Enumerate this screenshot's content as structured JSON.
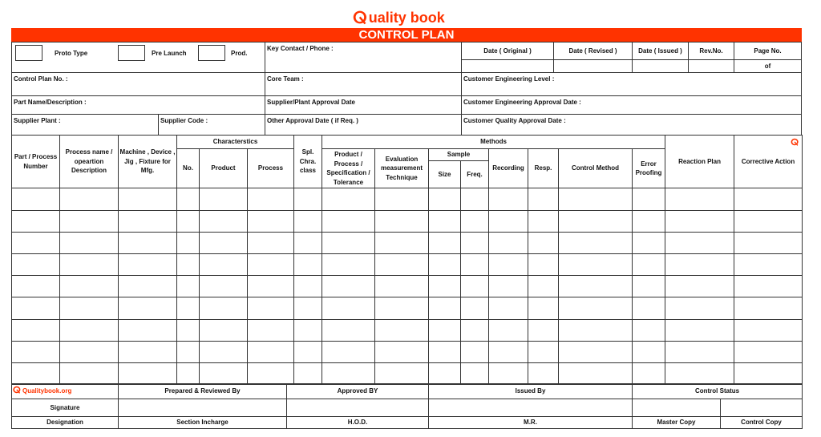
{
  "brand": {
    "logo_text": "uality book",
    "logo_mark": "Q",
    "accent": "#ff3300"
  },
  "title": "CONTROL PLAN",
  "header": {
    "proto_type": "Proto Type",
    "pre_launch": "Pre Launch",
    "prod": "Prod.",
    "key_contact": "Key Contact / Phone :",
    "date_original": "Date ( Original )",
    "date_revised": "Date ( Revised )",
    "date_issued": "Date ( Issued )",
    "rev_no": "Rev.No.",
    "page_no": "Page No.",
    "of": "of",
    "control_plan_no": "Control Plan No. :",
    "core_team": "Core Team :",
    "cust_eng_level": "Customer Engineering Level :",
    "part_name": "Part Name/Description :",
    "supplier_plant_approval": "Supplier/Plant Approval Date",
    "cust_eng_approval": "Customer Engineering Approval Date :",
    "supplier_plant": "Supplier Plant :",
    "supplier_code": "Supplier Code :",
    "other_approval": "Other Approval Date ( if Req. )",
    "cust_quality_approval": "Customer Quality Approval Date :"
  },
  "grid": {
    "part_process": "Part / Process Number",
    "process_name": "Process name / opeartion Description",
    "machine": "Machine , Device , Jig , Fixture for Mfg.",
    "characteristics": "Characterstics",
    "no": "No.",
    "product": "Product",
    "process": "Process",
    "spl": "Spl. Chra. class",
    "methods": "Methods",
    "spec": "Product / Process / Specification / Tolerance",
    "evaluation": "Evaluation measurement Technique",
    "sample": "Sample",
    "size": "Size",
    "freq": "Freq.",
    "recording": "Recording",
    "resp": "Resp.",
    "control_method": "Control Method",
    "error_proofing": "Error Proofing",
    "reaction_plan": "Reaction Plan",
    "corrective_action": "Corrective Action"
  },
  "footer": {
    "website": "Qualitybook.org",
    "prepared": "Prepared & Reviewed By",
    "approved": "Approved BY",
    "issued": "Issued By",
    "control_status": "Control Status",
    "signature": "Signature",
    "designation": "Designation",
    "section_incharge": "Section Incharge",
    "hod": "H.O.D.",
    "mr": "M.R.",
    "master_copy": "Master Copy",
    "control_copy": "Control Copy"
  }
}
